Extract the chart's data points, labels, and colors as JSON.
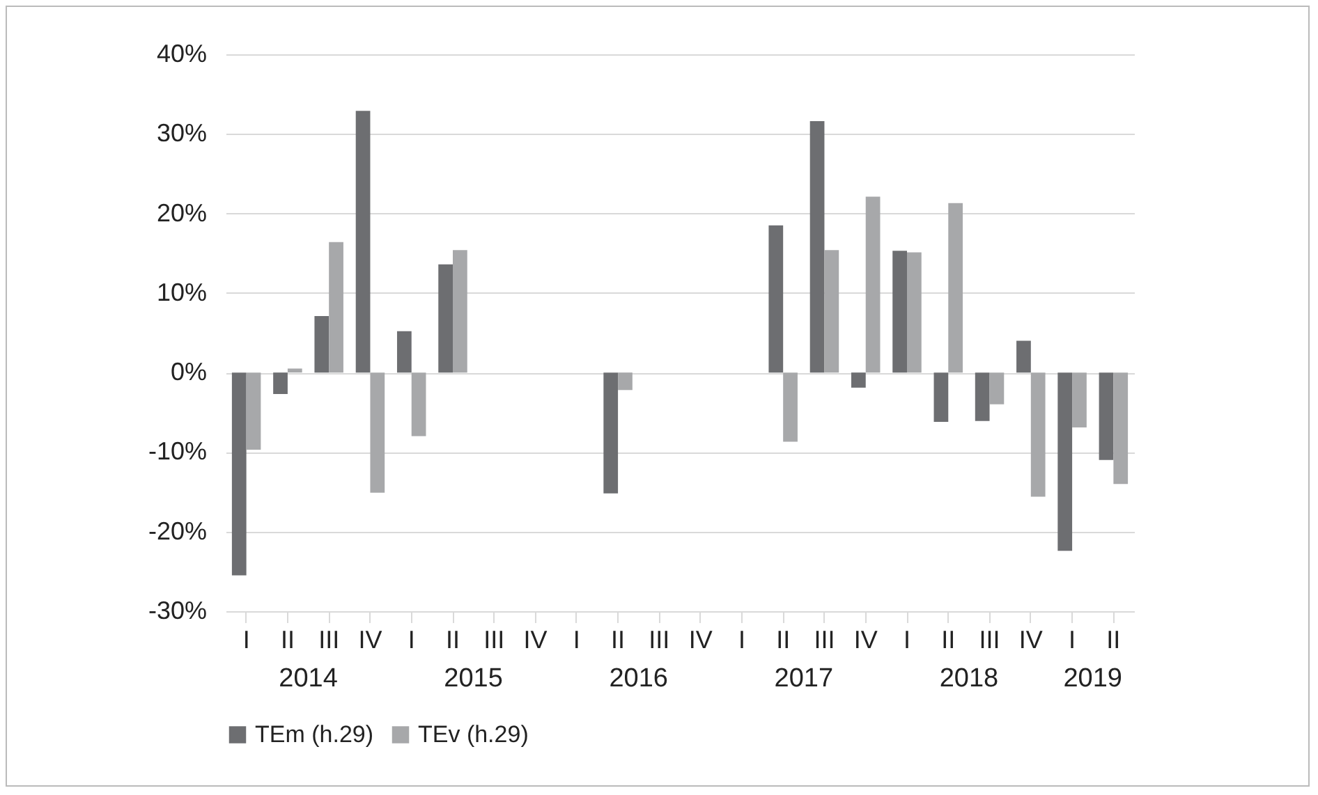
{
  "chart_data": {
    "type": "bar",
    "categories": [
      "I",
      "II",
      "III",
      "IV",
      "I",
      "II",
      "III",
      "IV",
      "I",
      "II",
      "III",
      "IV",
      "I",
      "II",
      "III",
      "IV",
      "I",
      "II",
      "III",
      "IV",
      "I",
      "II"
    ],
    "series": [
      {
        "name": "TEm (h.29)",
        "color": "#6d6e71",
        "values": [
          -25.5,
          -2.7,
          7.1,
          32.9,
          5.2,
          13.6,
          null,
          null,
          null,
          -15.2,
          null,
          null,
          null,
          18.5,
          31.6,
          -1.9,
          15.3,
          -6.2,
          -6.1,
          4.0,
          -22.4,
          -11.0
        ]
      },
      {
        "name": "TEv (h.29)",
        "color": "#a7a8aa",
        "values": [
          -9.7,
          0.5,
          16.4,
          -15.1,
          -8.0,
          15.4,
          null,
          null,
          null,
          -2.2,
          null,
          null,
          null,
          -8.7,
          15.4,
          22.1,
          15.1,
          21.3,
          -4.0,
          -15.6,
          -6.9,
          -14.0
        ]
      }
    ],
    "annotations": [
      "2014",
      "2015",
      "2016",
      "2017",
      "2018",
      "2019"
    ],
    "ylim": [
      -30,
      40
    ],
    "yticks": [
      {
        "value": -30,
        "label": "-30%"
      },
      {
        "value": -20,
        "label": "-20%"
      },
      {
        "value": -10,
        "label": "-10%"
      },
      {
        "value": 0,
        "label": "0%"
      },
      {
        "value": 10,
        "label": "10%"
      },
      {
        "value": 20,
        "label": "20%"
      },
      {
        "value": 30,
        "label": "30%"
      },
      {
        "value": 40,
        "label": "40%"
      }
    ],
    "grid": "y",
    "legend": "bottom"
  }
}
